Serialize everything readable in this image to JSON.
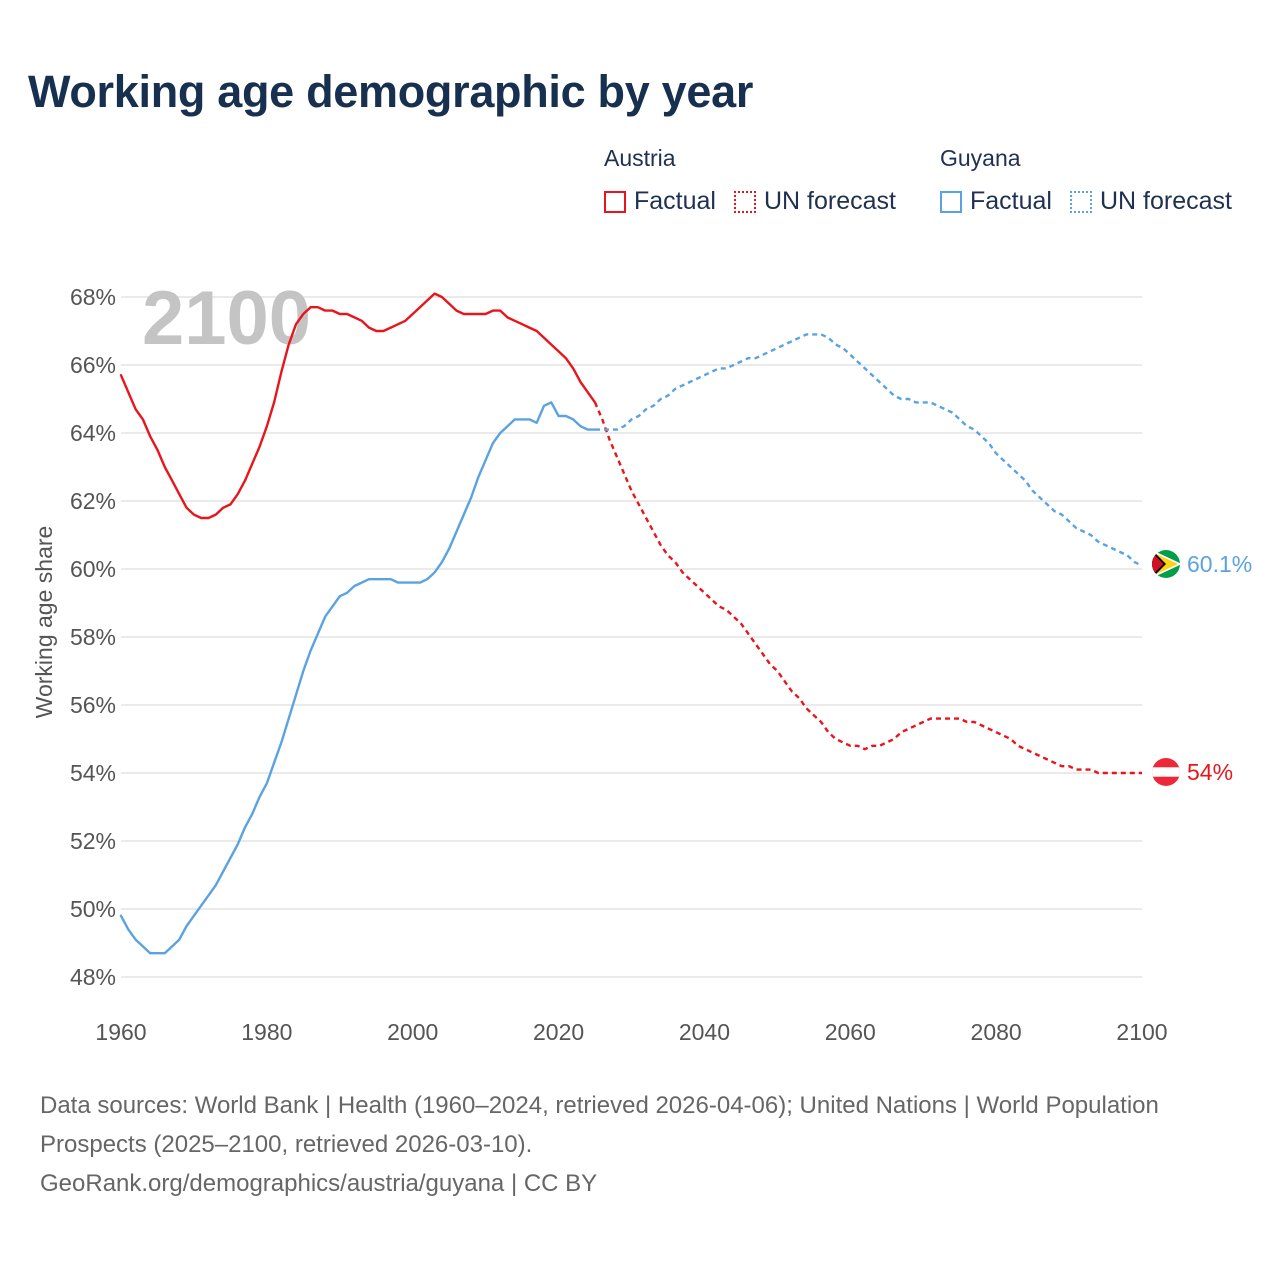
{
  "title": "Working age demographic by year",
  "legend": {
    "groups": [
      {
        "country": "Austria",
        "factual_label": "Factual",
        "forecast_label": "UN forecast",
        "color": "#e8161c"
      },
      {
        "country": "Guyana",
        "factual_label": "Factual",
        "forecast_label": "UN forecast",
        "color": "#5ba3e0"
      }
    ]
  },
  "chart_data": {
    "type": "line",
    "title": "Working age demographic by year",
    "ylabel": "Working age share",
    "xlabel": "",
    "year_overlay": "2100",
    "xlim": [
      1960,
      2100
    ],
    "ylim": [
      48,
      68
    ],
    "x_ticks": [
      "1960",
      "1980",
      "2000",
      "2020",
      "2040",
      "2060",
      "2080",
      "2100"
    ],
    "y_ticks": [
      "48%",
      "50%",
      "52%",
      "54%",
      "56%",
      "58%",
      "60%",
      "62%",
      "64%",
      "66%",
      "68%"
    ],
    "grid": true,
    "forecast_start": 2025,
    "series": [
      {
        "name": "Austria",
        "color": "#e8161c",
        "end_label": "54%",
        "points": [
          [
            1960,
            65.7
          ],
          [
            1962,
            64.7
          ],
          [
            1963,
            64.4
          ],
          [
            1964,
            63.9
          ],
          [
            1965,
            63.5
          ],
          [
            1966,
            63.0
          ],
          [
            1967,
            62.6
          ],
          [
            1968,
            62.2
          ],
          [
            1969,
            61.8
          ],
          [
            1970,
            61.6
          ],
          [
            1971,
            61.5
          ],
          [
            1972,
            61.5
          ],
          [
            1973,
            61.6
          ],
          [
            1974,
            61.8
          ],
          [
            1975,
            61.9
          ],
          [
            1976,
            62.2
          ],
          [
            1977,
            62.6
          ],
          [
            1978,
            63.1
          ],
          [
            1979,
            63.6
          ],
          [
            1980,
            64.2
          ],
          [
            1981,
            64.9
          ],
          [
            1982,
            65.8
          ],
          [
            1983,
            66.6
          ],
          [
            1984,
            67.2
          ],
          [
            1985,
            67.5
          ],
          [
            1986,
            67.7
          ],
          [
            1987,
            67.7
          ],
          [
            1988,
            67.6
          ],
          [
            1989,
            67.6
          ],
          [
            1990,
            67.5
          ],
          [
            1991,
            67.5
          ],
          [
            1992,
            67.4
          ],
          [
            1993,
            67.3
          ],
          [
            1994,
            67.1
          ],
          [
            1995,
            67.0
          ],
          [
            1996,
            67.0
          ],
          [
            1997,
            67.1
          ],
          [
            1998,
            67.2
          ],
          [
            1999,
            67.3
          ],
          [
            2000,
            67.5
          ],
          [
            2001,
            67.7
          ],
          [
            2002,
            67.9
          ],
          [
            2003,
            68.1
          ],
          [
            2004,
            68.0
          ],
          [
            2005,
            67.8
          ],
          [
            2006,
            67.6
          ],
          [
            2007,
            67.5
          ],
          [
            2008,
            67.5
          ],
          [
            2009,
            67.5
          ],
          [
            2010,
            67.5
          ],
          [
            2011,
            67.6
          ],
          [
            2012,
            67.6
          ],
          [
            2013,
            67.4
          ],
          [
            2014,
            67.3
          ],
          [
            2015,
            67.2
          ],
          [
            2016,
            67.1
          ],
          [
            2017,
            67.0
          ],
          [
            2018,
            66.8
          ],
          [
            2019,
            66.6
          ],
          [
            2020,
            66.4
          ],
          [
            2021,
            66.2
          ],
          [
            2022,
            65.9
          ],
          [
            2023,
            65.5
          ],
          [
            2024,
            65.2
          ],
          [
            2025,
            64.9
          ],
          [
            2026,
            64.4
          ],
          [
            2027,
            63.8
          ],
          [
            2028,
            63.3
          ],
          [
            2029,
            62.8
          ],
          [
            2030,
            62.3
          ],
          [
            2031,
            61.9
          ],
          [
            2032,
            61.5
          ],
          [
            2033,
            61.1
          ],
          [
            2034,
            60.7
          ],
          [
            2035,
            60.4
          ],
          [
            2036,
            60.2
          ],
          [
            2037,
            59.9
          ],
          [
            2038,
            59.7
          ],
          [
            2039,
            59.5
          ],
          [
            2040,
            59.3
          ],
          [
            2041,
            59.1
          ],
          [
            2042,
            58.9
          ],
          [
            2043,
            58.8
          ],
          [
            2044,
            58.6
          ],
          [
            2045,
            58.4
          ],
          [
            2046,
            58.1
          ],
          [
            2047,
            57.8
          ],
          [
            2048,
            57.5
          ],
          [
            2049,
            57.2
          ],
          [
            2050,
            57.0
          ],
          [
            2051,
            56.7
          ],
          [
            2052,
            56.4
          ],
          [
            2053,
            56.2
          ],
          [
            2054,
            55.9
          ],
          [
            2055,
            55.7
          ],
          [
            2056,
            55.5
          ],
          [
            2057,
            55.2
          ],
          [
            2058,
            55.0
          ],
          [
            2059,
            54.9
          ],
          [
            2060,
            54.8
          ],
          [
            2061,
            54.8
          ],
          [
            2062,
            54.7
          ],
          [
            2063,
            54.8
          ],
          [
            2064,
            54.8
          ],
          [
            2065,
            54.9
          ],
          [
            2066,
            55.0
          ],
          [
            2067,
            55.2
          ],
          [
            2068,
            55.3
          ],
          [
            2069,
            55.4
          ],
          [
            2070,
            55.5
          ],
          [
            2071,
            55.6
          ],
          [
            2072,
            55.6
          ],
          [
            2073,
            55.6
          ],
          [
            2074,
            55.6
          ],
          [
            2075,
            55.6
          ],
          [
            2076,
            55.5
          ],
          [
            2077,
            55.5
          ],
          [
            2078,
            55.4
          ],
          [
            2079,
            55.3
          ],
          [
            2080,
            55.2
          ],
          [
            2081,
            55.1
          ],
          [
            2082,
            55.0
          ],
          [
            2083,
            54.8
          ],
          [
            2084,
            54.7
          ],
          [
            2085,
            54.6
          ],
          [
            2086,
            54.5
          ],
          [
            2087,
            54.4
          ],
          [
            2088,
            54.3
          ],
          [
            2089,
            54.2
          ],
          [
            2090,
            54.2
          ],
          [
            2091,
            54.1
          ],
          [
            2092,
            54.1
          ],
          [
            2093,
            54.1
          ],
          [
            2094,
            54.0
          ],
          [
            2095,
            54.0
          ],
          [
            2096,
            54.0
          ],
          [
            2097,
            54.0
          ],
          [
            2098,
            54.0
          ],
          [
            2099,
            54.0
          ],
          [
            2100,
            54.0
          ]
        ]
      },
      {
        "name": "Guyana",
        "color": "#5ba3e0",
        "end_label": "60.1%",
        "points": [
          [
            1960,
            49.8
          ],
          [
            1961,
            49.4
          ],
          [
            1962,
            49.1
          ],
          [
            1963,
            48.9
          ],
          [
            1964,
            48.7
          ],
          [
            1965,
            48.7
          ],
          [
            1966,
            48.7
          ],
          [
            1967,
            48.9
          ],
          [
            1968,
            49.1
          ],
          [
            1969,
            49.5
          ],
          [
            1970,
            49.8
          ],
          [
            1971,
            50.1
          ],
          [
            1972,
            50.4
          ],
          [
            1973,
            50.7
          ],
          [
            1974,
            51.1
          ],
          [
            1975,
            51.5
          ],
          [
            1976,
            51.9
          ],
          [
            1977,
            52.4
          ],
          [
            1978,
            52.8
          ],
          [
            1979,
            53.3
          ],
          [
            1980,
            53.7
          ],
          [
            1981,
            54.3
          ],
          [
            1982,
            54.9
          ],
          [
            1983,
            55.6
          ],
          [
            1984,
            56.3
          ],
          [
            1985,
            57.0
          ],
          [
            1986,
            57.6
          ],
          [
            1987,
            58.1
          ],
          [
            1988,
            58.6
          ],
          [
            1989,
            58.9
          ],
          [
            1990,
            59.2
          ],
          [
            1991,
            59.3
          ],
          [
            1992,
            59.5
          ],
          [
            1993,
            59.6
          ],
          [
            1994,
            59.7
          ],
          [
            1995,
            59.7
          ],
          [
            1996,
            59.7
          ],
          [
            1997,
            59.7
          ],
          [
            1998,
            59.6
          ],
          [
            1999,
            59.6
          ],
          [
            2000,
            59.6
          ],
          [
            2001,
            59.6
          ],
          [
            2002,
            59.7
          ],
          [
            2003,
            59.9
          ],
          [
            2004,
            60.2
          ],
          [
            2005,
            60.6
          ],
          [
            2006,
            61.1
          ],
          [
            2007,
            61.6
          ],
          [
            2008,
            62.1
          ],
          [
            2009,
            62.7
          ],
          [
            2010,
            63.2
          ],
          [
            2011,
            63.7
          ],
          [
            2012,
            64.0
          ],
          [
            2013,
            64.2
          ],
          [
            2014,
            64.4
          ],
          [
            2015,
            64.4
          ],
          [
            2016,
            64.4
          ],
          [
            2017,
            64.3
          ],
          [
            2018,
            64.8
          ],
          [
            2019,
            64.9
          ],
          [
            2020,
            64.5
          ],
          [
            2021,
            64.5
          ],
          [
            2022,
            64.4
          ],
          [
            2023,
            64.2
          ],
          [
            2024,
            64.1
          ],
          [
            2025,
            64.1
          ],
          [
            2026,
            64.1
          ],
          [
            2027,
            64.1
          ],
          [
            2028,
            64.1
          ],
          [
            2029,
            64.2
          ],
          [
            2030,
            64.4
          ],
          [
            2031,
            64.5
          ],
          [
            2032,
            64.7
          ],
          [
            2033,
            64.8
          ],
          [
            2034,
            65.0
          ],
          [
            2035,
            65.1
          ],
          [
            2036,
            65.3
          ],
          [
            2037,
            65.4
          ],
          [
            2038,
            65.5
          ],
          [
            2039,
            65.6
          ],
          [
            2040,
            65.7
          ],
          [
            2041,
            65.8
          ],
          [
            2042,
            65.9
          ],
          [
            2043,
            65.9
          ],
          [
            2044,
            66.0
          ],
          [
            2045,
            66.1
          ],
          [
            2046,
            66.2
          ],
          [
            2047,
            66.2
          ],
          [
            2048,
            66.3
          ],
          [
            2049,
            66.4
          ],
          [
            2050,
            66.5
          ],
          [
            2051,
            66.6
          ],
          [
            2052,
            66.7
          ],
          [
            2053,
            66.8
          ],
          [
            2054,
            66.9
          ],
          [
            2055,
            66.9
          ],
          [
            2056,
            66.9
          ],
          [
            2057,
            66.8
          ],
          [
            2058,
            66.6
          ],
          [
            2059,
            66.5
          ],
          [
            2060,
            66.3
          ],
          [
            2061,
            66.1
          ],
          [
            2062,
            65.9
          ],
          [
            2063,
            65.7
          ],
          [
            2064,
            65.5
          ],
          [
            2065,
            65.3
          ],
          [
            2066,
            65.1
          ],
          [
            2067,
            65.0
          ],
          [
            2068,
            65.0
          ],
          [
            2069,
            64.9
          ],
          [
            2070,
            64.9
          ],
          [
            2071,
            64.9
          ],
          [
            2072,
            64.8
          ],
          [
            2073,
            64.7
          ],
          [
            2074,
            64.6
          ],
          [
            2075,
            64.4
          ],
          [
            2076,
            64.2
          ],
          [
            2077,
            64.1
          ],
          [
            2078,
            63.9
          ],
          [
            2079,
            63.7
          ],
          [
            2080,
            63.4
          ],
          [
            2081,
            63.2
          ],
          [
            2082,
            63.0
          ],
          [
            2083,
            62.8
          ],
          [
            2084,
            62.6
          ],
          [
            2085,
            62.3
          ],
          [
            2086,
            62.1
          ],
          [
            2087,
            61.9
          ],
          [
            2088,
            61.7
          ],
          [
            2089,
            61.6
          ],
          [
            2090,
            61.4
          ],
          [
            2091,
            61.2
          ],
          [
            2092,
            61.1
          ],
          [
            2093,
            61.0
          ],
          [
            2094,
            60.8
          ],
          [
            2095,
            60.7
          ],
          [
            2096,
            60.6
          ],
          [
            2097,
            60.5
          ],
          [
            2098,
            60.4
          ],
          [
            2099,
            60.2
          ],
          [
            2100,
            60.1
          ]
        ]
      }
    ]
  },
  "footer": {
    "sources": "Data sources: World Bank | Health (1960–2024, retrieved 2026-04-06); United Nations | World Population Prospects (2025–2100, retrieved 2026-03-10).",
    "credit": "GeoRank.org/demographics/austria/guyana | CC BY"
  }
}
